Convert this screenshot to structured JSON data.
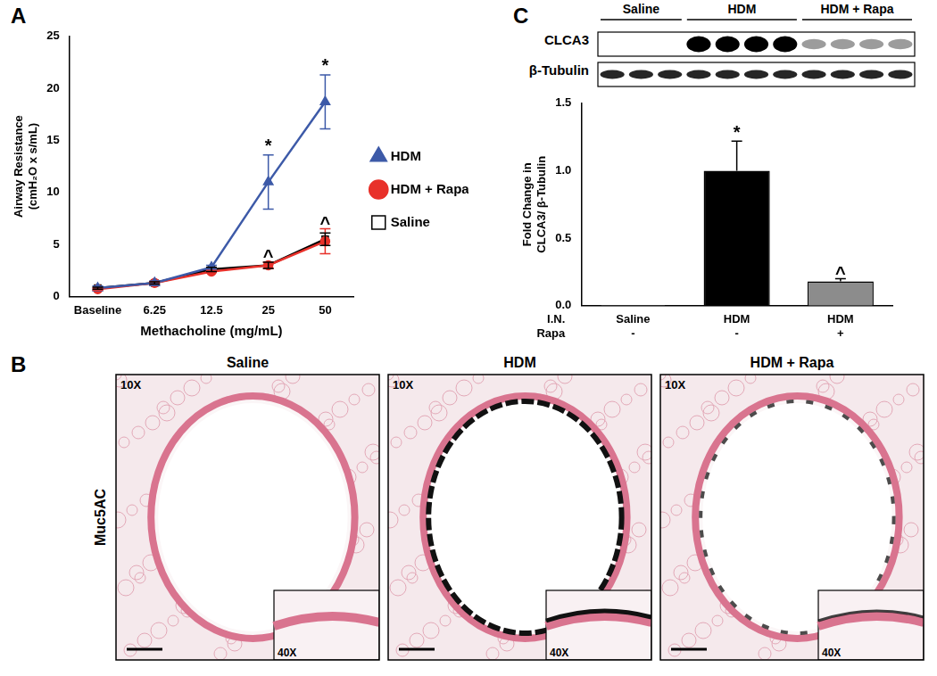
{
  "panel_labels": [
    "A",
    "B",
    "C"
  ],
  "chart_data": [
    {
      "type": "line",
      "x_label": "Methacholine (mg/mL)",
      "y_label": [
        "Airway Resistance",
        "(cmH₂O x s/mL)"
      ],
      "categories": [
        "Baseline",
        "6.25",
        "12.5",
        "25",
        "50"
      ],
      "ylim": [
        0,
        25
      ],
      "yticks": [
        0,
        5,
        10,
        15,
        20,
        25
      ],
      "grid": false,
      "legend": "right",
      "series": [
        {
          "name": "HDM",
          "color": "#3d5aa8",
          "marker": "triangle",
          "values": [
            0.8,
            1.3,
            2.8,
            11.0,
            18.7
          ],
          "errors": [
            0.2,
            0.2,
            0.2,
            2.6,
            2.6
          ]
        },
        {
          "name": "HDM + Rapa",
          "color": "#e8312a",
          "marker": "circle",
          "values": [
            0.7,
            1.3,
            2.4,
            3.0,
            5.3
          ],
          "errors": [
            0.1,
            0.1,
            0.1,
            0.3,
            1.2
          ]
        },
        {
          "name": "Saline",
          "color": "#000000",
          "marker": "open_square",
          "values": [
            0.8,
            1.3,
            2.6,
            3.0,
            5.5
          ],
          "errors": [
            0.1,
            0.1,
            0.2,
            0.3,
            0.6
          ]
        }
      ],
      "annotations": [
        {
          "text": "*",
          "series": "HDM",
          "category": "25"
        },
        {
          "text": "*",
          "series": "HDM",
          "category": "50"
        },
        {
          "text": "^",
          "series": "HDM + Rapa",
          "category": "25"
        },
        {
          "text": "^",
          "series": "HDM + Rapa",
          "category": "50"
        }
      ]
    },
    {
      "type": "bar",
      "y_label": [
        "Fold Change in",
        "CLCA3/ β-Tubulin"
      ],
      "categories": [
        "Saline",
        "HDM",
        "HDM"
      ],
      "category_row_label": "I.N.",
      "second_row": {
        "label": "Rapa",
        "values": [
          "-",
          "-",
          "+"
        ]
      },
      "values": [
        0.005,
        1.0,
        0.18
      ],
      "errors": [
        0.0,
        0.22,
        0.02
      ],
      "colors": [
        "#ffffff",
        "#000000",
        "#8c8c8c"
      ],
      "ylim": [
        0,
        1.5
      ],
      "yticks": [
        {
          "value": 0,
          "label": "0.0"
        },
        {
          "value": 0.5,
          "label": "0.5"
        },
        {
          "value": 1.0,
          "label": "1.0"
        },
        {
          "value": 1.5,
          "label": "1.5"
        }
      ],
      "grid": false,
      "annotations": [
        {
          "text": "*",
          "index": 1
        },
        {
          "text": "^",
          "index": 2
        }
      ]
    }
  ],
  "blot": {
    "groups": [
      {
        "label": "Saline",
        "lanes": 3
      },
      {
        "label": "HDM",
        "lanes": 4
      },
      {
        "label": "HDM + Rapa",
        "lanes": 4
      }
    ],
    "rows": [
      "CLCA3",
      "β-Tubulin"
    ]
  },
  "histology": {
    "stain": "Muc5AC",
    "panels": [
      "Saline",
      "HDM",
      "HDM + Rapa"
    ],
    "magnification": "10X",
    "inset_magnification": "40X"
  }
}
